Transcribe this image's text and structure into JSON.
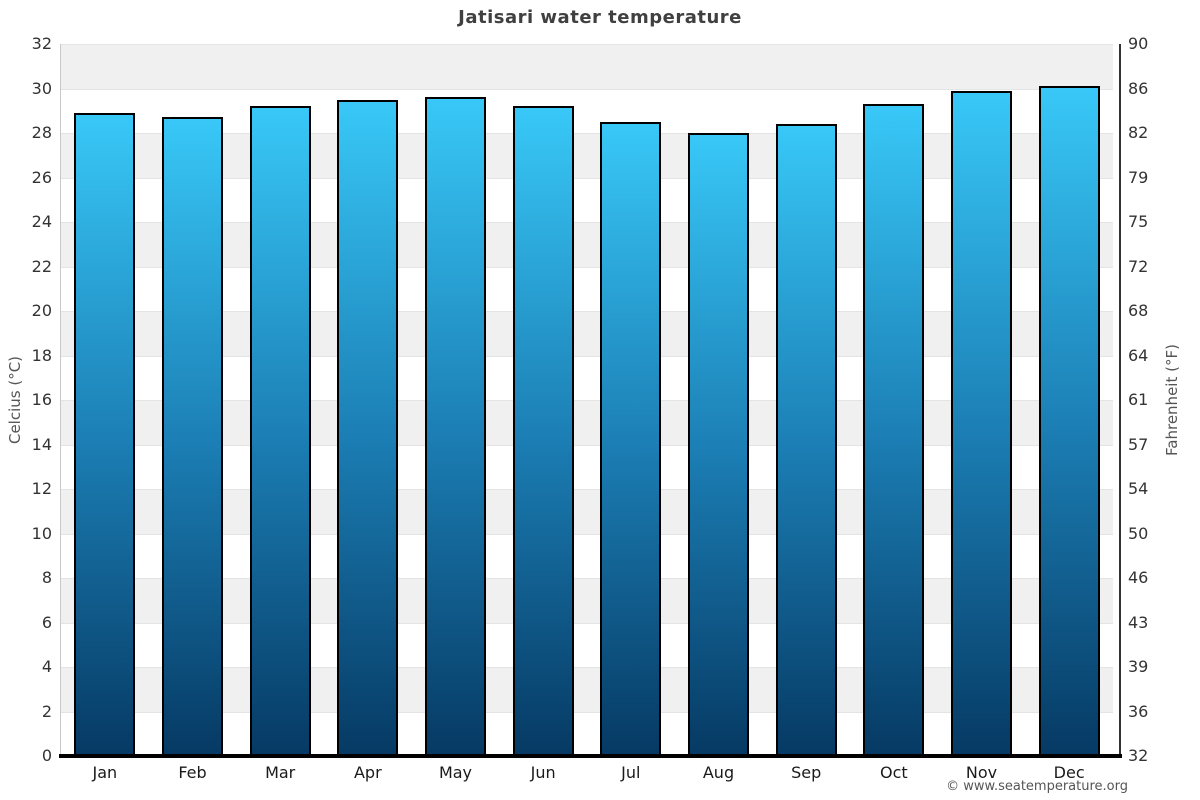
{
  "title": "Jatisari water temperature",
  "footer": "© www.seatemperature.org",
  "chart_data": {
    "type": "bar",
    "title": "Jatisari water temperature",
    "categories": [
      "Jan",
      "Feb",
      "Mar",
      "Apr",
      "May",
      "Jun",
      "Jul",
      "Aug",
      "Sep",
      "Oct",
      "Nov",
      "Dec"
    ],
    "values": [
      28.9,
      28.7,
      29.2,
      29.5,
      29.6,
      29.2,
      28.5,
      28.0,
      28.4,
      29.3,
      29.9,
      30.1
    ],
    "unit": "°C",
    "ylabel_left": "Celcius (°C)",
    "ylabel_right": "Fahrenheit (°F)",
    "ylim": [
      0,
      32
    ],
    "yticks_celsius": [
      32,
      30,
      28,
      26,
      24,
      22,
      20,
      18,
      16,
      14,
      12,
      10,
      8,
      6,
      4,
      2,
      0
    ],
    "yticks_fahrenheit": [
      90,
      86,
      82,
      79,
      75,
      72,
      68,
      64,
      61,
      57,
      54,
      50,
      46,
      43,
      39,
      36,
      32
    ],
    "grid": "alternating horizontal bands every 2°C, gray/white, gridline at each boundary",
    "legend": "none"
  },
  "colors": {
    "band_gray": "#f0f0f0",
    "band_white": "#ffffff",
    "gridline": "#e4e4e4",
    "bar_gradient_top": "#38c8f7",
    "bar_gradient_mid": "#1b7db3",
    "bar_gradient_bottom": "#063a64",
    "bar_border": "#000000",
    "title_text": "#404040",
    "tick_text": "#333333",
    "axis_label_text": "#555555",
    "footer_text": "#555555"
  }
}
